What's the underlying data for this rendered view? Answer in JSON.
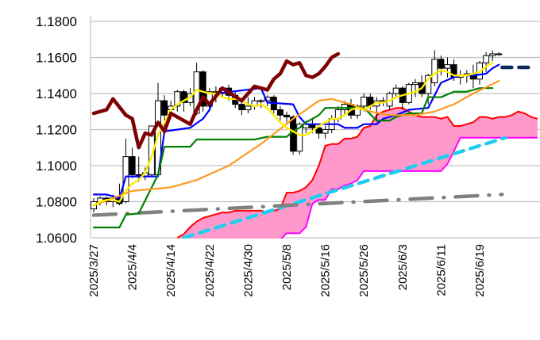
{
  "chart_data": {
    "type": "candlestick",
    "title": "",
    "xlabel": "",
    "ylabel": "",
    "ylim": [
      1.06,
      1.18
    ],
    "grid": true,
    "yticks": [
      "1.1800",
      "1.1600",
      "1.1400",
      "1.1200",
      "1.1000",
      "1.0800",
      "1.0600"
    ],
    "ytick_values": [
      1.18,
      1.16,
      1.14,
      1.12,
      1.1,
      1.08,
      1.06
    ],
    "xticks": [
      {
        "index": 0,
        "label": "2025/3/27"
      },
      {
        "index": 6,
        "label": "2025/4/4"
      },
      {
        "index": 12,
        "label": "2025/4/14"
      },
      {
        "index": 18,
        "label": "2025/4/22"
      },
      {
        "index": 24,
        "label": "2025/4/30"
      },
      {
        "index": 30,
        "label": "2025/5/8"
      },
      {
        "index": 36,
        "label": "2025/5/16"
      },
      {
        "index": 42,
        "label": "2025/5/26"
      },
      {
        "index": 48,
        "label": "2025/6/3"
      },
      {
        "index": 54,
        "label": "2025/6/11"
      },
      {
        "index": 60,
        "label": "2025/6/19"
      }
    ],
    "x_slots": 70,
    "candles_ohlc": [
      [
        1.076,
        1.082,
        1.074,
        1.08
      ],
      [
        1.08,
        1.083,
        1.078,
        1.082
      ],
      [
        1.082,
        1.083,
        1.078,
        1.08
      ],
      [
        1.08,
        1.084,
        1.077,
        1.082
      ],
      [
        1.082,
        1.09,
        1.078,
        1.079
      ],
      [
        1.08,
        1.115,
        1.079,
        1.105
      ],
      [
        1.105,
        1.11,
        1.093,
        1.095
      ],
      [
        1.095,
        1.105,
        1.091,
        1.094
      ],
      [
        1.094,
        1.099,
        1.092,
        1.096
      ],
      [
        1.095,
        1.122,
        1.094,
        1.122
      ],
      [
        1.095,
        1.146,
        1.094,
        1.136
      ],
      [
        1.136,
        1.139,
        1.121,
        1.128
      ],
      [
        1.131,
        1.136,
        1.126,
        1.133
      ],
      [
        1.133,
        1.142,
        1.13,
        1.141
      ],
      [
        1.141,
        1.142,
        1.13,
        1.135
      ],
      [
        1.135,
        1.143,
        1.133,
        1.14
      ],
      [
        1.129,
        1.157,
        1.128,
        1.152
      ],
      [
        1.152,
        1.153,
        1.13,
        1.133
      ],
      [
        1.133,
        1.143,
        1.13,
        1.141
      ],
      [
        1.141,
        1.144,
        1.135,
        1.14
      ],
      [
        1.14,
        1.144,
        1.138,
        1.143
      ],
      [
        1.143,
        1.145,
        1.136,
        1.139
      ],
      [
        1.139,
        1.141,
        1.132,
        1.134
      ],
      [
        1.134,
        1.137,
        1.128,
        1.131
      ],
      [
        1.131,
        1.138,
        1.129,
        1.133
      ],
      [
        1.133,
        1.138,
        1.131,
        1.136
      ],
      [
        1.136,
        1.137,
        1.132,
        1.136
      ],
      [
        1.136,
        1.139,
        1.133,
        1.138
      ],
      [
        1.138,
        1.139,
        1.129,
        1.131
      ],
      [
        1.131,
        1.133,
        1.125,
        1.128
      ],
      [
        1.128,
        1.13,
        1.124,
        1.127
      ],
      [
        1.127,
        1.128,
        1.106,
        1.108
      ],
      [
        1.108,
        1.124,
        1.106,
        1.123
      ],
      [
        1.121,
        1.125,
        1.118,
        1.123
      ],
      [
        1.123,
        1.126,
        1.118,
        1.121
      ],
      [
        1.121,
        1.123,
        1.115,
        1.118
      ],
      [
        1.118,
        1.122,
        1.115,
        1.12
      ],
      [
        1.12,
        1.128,
        1.118,
        1.126
      ],
      [
        1.126,
        1.133,
        1.124,
        1.131
      ],
      [
        1.131,
        1.136,
        1.128,
        1.134
      ],
      [
        1.134,
        1.137,
        1.126,
        1.128
      ],
      [
        1.128,
        1.134,
        1.126,
        1.133
      ],
      [
        1.133,
        1.14,
        1.13,
        1.138
      ],
      [
        1.138,
        1.14,
        1.131,
        1.133
      ],
      [
        1.133,
        1.138,
        1.124,
        1.136
      ],
      [
        1.136,
        1.138,
        1.133,
        1.135
      ],
      [
        1.133,
        1.141,
        1.131,
        1.14
      ],
      [
        1.14,
        1.145,
        1.138,
        1.143
      ],
      [
        1.143,
        1.144,
        1.131,
        1.135
      ],
      [
        1.135,
        1.146,
        1.134,
        1.145
      ],
      [
        1.145,
        1.148,
        1.138,
        1.146
      ],
      [
        1.146,
        1.15,
        1.138,
        1.14
      ],
      [
        1.14,
        1.151,
        1.134,
        1.15
      ],
      [
        1.146,
        1.164,
        1.144,
        1.159
      ],
      [
        1.159,
        1.161,
        1.15,
        1.154
      ],
      [
        1.154,
        1.16,
        1.149,
        1.156
      ],
      [
        1.156,
        1.159,
        1.147,
        1.149
      ],
      [
        1.149,
        1.153,
        1.145,
        1.15
      ],
      [
        1.15,
        1.153,
        1.146,
        1.151
      ],
      [
        1.151,
        1.156,
        1.143,
        1.148
      ],
      [
        1.148,
        1.158,
        1.145,
        1.157
      ],
      [
        1.157,
        1.163,
        1.152,
        1.161
      ],
      [
        1.161,
        1.164,
        1.158,
        1.162
      ],
      [
        1.162,
        1.163,
        1.161,
        1.162
      ]
    ],
    "series": [
      {
        "name": "tenkan",
        "color": "#0000ff",
        "points": [
          [
            0,
            1.084
          ],
          [
            2,
            1.084
          ],
          [
            4,
            1.082
          ],
          [
            5,
            1.094
          ],
          [
            10,
            1.094
          ],
          [
            11,
            1.119
          ],
          [
            15,
            1.121
          ],
          [
            17,
            1.126
          ],
          [
            18,
            1.131
          ],
          [
            19,
            1.14
          ],
          [
            26,
            1.143
          ],
          [
            27,
            1.135
          ],
          [
            31,
            1.134
          ],
          [
            32,
            1.127
          ],
          [
            33,
            1.123
          ],
          [
            38,
            1.123
          ],
          [
            39,
            1.121
          ],
          [
            41,
            1.121
          ],
          [
            42,
            1.123
          ],
          [
            44,
            1.123
          ],
          [
            45,
            1.126
          ],
          [
            47,
            1.128
          ],
          [
            49,
            1.131
          ],
          [
            52,
            1.132
          ],
          [
            53,
            1.139
          ],
          [
            54,
            1.146
          ],
          [
            56,
            1.149
          ],
          [
            57,
            1.15
          ],
          [
            59,
            1.15
          ],
          [
            61,
            1.151
          ],
          [
            62,
            1.154
          ],
          [
            63,
            1.156
          ]
        ]
      },
      {
        "name": "kijun",
        "color": "#008000",
        "points": [
          [
            0,
            1.0657
          ],
          [
            4,
            1.0657
          ],
          [
            5,
            1.0728
          ],
          [
            7,
            1.0735
          ],
          [
            10,
            1.095
          ],
          [
            11,
            1.1105
          ],
          [
            15,
            1.1105
          ],
          [
            16,
            1.1145
          ],
          [
            25,
            1.1145
          ],
          [
            27,
            1.116
          ],
          [
            30,
            1.116
          ],
          [
            31,
            1.119
          ],
          [
            32,
            1.121
          ],
          [
            33,
            1.124
          ],
          [
            35,
            1.128
          ],
          [
            36,
            1.132
          ],
          [
            42,
            1.132
          ],
          [
            44,
            1.125
          ],
          [
            46,
            1.125
          ],
          [
            47,
            1.127
          ],
          [
            49,
            1.129
          ],
          [
            51,
            1.129
          ],
          [
            52,
            1.138
          ],
          [
            54,
            1.138
          ],
          [
            56,
            1.141
          ],
          [
            58,
            1.141
          ],
          [
            60,
            1.143
          ],
          [
            62,
            1.143
          ]
        ]
      },
      {
        "name": "ma-long",
        "color": "#ff9a1f",
        "points": [
          [
            0,
            1.078
          ],
          [
            6,
            1.086
          ],
          [
            12,
            1.088
          ],
          [
            16,
            1.092
          ],
          [
            21,
            1.1
          ],
          [
            26,
            1.112
          ],
          [
            31,
            1.126
          ],
          [
            35,
            1.136
          ],
          [
            37,
            1.137
          ],
          [
            40,
            1.134
          ],
          [
            43,
            1.13
          ],
          [
            46,
            1.128
          ],
          [
            50,
            1.128
          ],
          [
            53,
            1.13
          ],
          [
            56,
            1.134
          ],
          [
            59,
            1.14
          ],
          [
            63,
            1.147
          ]
        ]
      },
      {
        "name": "ma-short",
        "color": "#ffee00",
        "points": [
          [
            0,
            1.078
          ],
          [
            1,
            1.08
          ],
          [
            2,
            1.081
          ],
          [
            3,
            1.081
          ],
          [
            4,
            1.08
          ],
          [
            5,
            1.086
          ],
          [
            6,
            1.09
          ],
          [
            7,
            1.092
          ],
          [
            8,
            1.096
          ],
          [
            9,
            1.105
          ],
          [
            10,
            1.117
          ],
          [
            11,
            1.124
          ],
          [
            12,
            1.131
          ],
          [
            13,
            1.134
          ],
          [
            14,
            1.136
          ],
          [
            15,
            1.138
          ],
          [
            16,
            1.142
          ],
          [
            17,
            1.141
          ],
          [
            18,
            1.14
          ],
          [
            19,
            1.14
          ],
          [
            20,
            1.138
          ],
          [
            21,
            1.137
          ],
          [
            22,
            1.137
          ],
          [
            23,
            1.136
          ],
          [
            24,
            1.134
          ],
          [
            25,
            1.133
          ],
          [
            26,
            1.134
          ],
          [
            27,
            1.132
          ],
          [
            28,
            1.128
          ],
          [
            29,
            1.124
          ],
          [
            30,
            1.121
          ],
          [
            31,
            1.119
          ],
          [
            32,
            1.117
          ],
          [
            33,
            1.117
          ],
          [
            34,
            1.119
          ],
          [
            35,
            1.122
          ],
          [
            36,
            1.124
          ],
          [
            37,
            1.126
          ],
          [
            38,
            1.126
          ],
          [
            39,
            1.128
          ],
          [
            40,
            1.131
          ],
          [
            41,
            1.132
          ],
          [
            42,
            1.131
          ],
          [
            43,
            1.133
          ],
          [
            44,
            1.135
          ],
          [
            45,
            1.135
          ],
          [
            46,
            1.136
          ],
          [
            47,
            1.138
          ],
          [
            48,
            1.139
          ],
          [
            49,
            1.14
          ],
          [
            50,
            1.141
          ],
          [
            51,
            1.143
          ],
          [
            52,
            1.148
          ],
          [
            53,
            1.151
          ],
          [
            54,
            1.153
          ],
          [
            55,
            1.152
          ],
          [
            56,
            1.15
          ],
          [
            57,
            1.15
          ],
          [
            58,
            1.15
          ],
          [
            59,
            1.151
          ],
          [
            60,
            1.152
          ],
          [
            61,
            1.155
          ],
          [
            62,
            1.157
          ]
        ]
      },
      {
        "name": "chikou",
        "color": "#7f0000",
        "points": [
          [
            0,
            1.129
          ],
          [
            2,
            1.131
          ],
          [
            3,
            1.137
          ],
          [
            5,
            1.128
          ],
          [
            6,
            1.126
          ],
          [
            7,
            1.11
          ],
          [
            8,
            1.118
          ],
          [
            9,
            1.117
          ],
          [
            10,
            1.124
          ],
          [
            11,
            1.119
          ],
          [
            12,
            1.129
          ],
          [
            15,
            1.123
          ],
          [
            16,
            1.131
          ],
          [
            17,
            1.138
          ],
          [
            18,
            1.134
          ],
          [
            20,
            1.143
          ],
          [
            23,
            1.136
          ],
          [
            25,
            1.144
          ],
          [
            27,
            1.142
          ],
          [
            28,
            1.148
          ],
          [
            29,
            1.151
          ],
          [
            30,
            1.158
          ],
          [
            31,
            1.156
          ],
          [
            32,
            1.157
          ],
          [
            33,
            1.15
          ],
          [
            34,
            1.149
          ],
          [
            35,
            1.151
          ],
          [
            36,
            1.155
          ],
          [
            37,
            1.16
          ],
          [
            38,
            1.162
          ]
        ]
      }
    ],
    "cloud": {
      "start_index": 13,
      "fill_color": "#ff99cc",
      "senkou_a_color": "#ff0000",
      "senkou_b_color": "#ff00ff",
      "senkou_a": [
        1.06,
        1.062,
        1.066,
        1.069,
        1.071,
        1.072,
        1.073,
        1.074,
        1.074,
        1.075,
        1.075,
        1.075,
        1.075,
        1.075,
        1.074,
        1.075,
        1.076,
        1.085,
        1.085,
        1.086,
        1.088,
        1.092,
        1.1,
        1.111,
        1.112,
        1.112,
        1.115,
        1.115,
        1.116,
        1.121,
        1.122,
        1.128,
        1.13,
        1.131,
        1.132,
        1.132,
        1.13,
        1.128,
        1.127,
        1.127,
        1.127,
        1.126,
        1.127,
        1.122,
        1.122,
        1.123,
        1.124,
        1.127,
        1.127,
        1.126,
        1.127,
        1.127,
        1.128,
        1.13,
        1.129,
        1.127,
        1.126
      ],
      "senkou_b": [
        1.05,
        1.05,
        1.05,
        1.052,
        1.052,
        1.052,
        1.054,
        1.054,
        1.055,
        1.055,
        1.056,
        1.056,
        1.057,
        1.058,
        1.058,
        1.059,
        1.059,
        1.0625,
        1.0625,
        1.0625,
        1.066,
        1.079,
        1.081,
        1.081,
        1.087,
        1.087,
        1.089,
        1.09,
        1.092,
        1.097,
        1.097,
        1.097,
        1.097,
        1.097,
        1.097,
        1.097,
        1.097,
        1.097,
        1.097,
        1.097,
        1.097,
        1.097,
        1.101,
        1.108,
        1.1155,
        1.1155,
        1.1155,
        1.1155,
        1.1155,
        1.1155,
        1.1155,
        1.1155,
        1.1155,
        1.1155,
        1.1155,
        1.1155,
        1.1155
      ]
    },
    "trendlines": [
      {
        "name": "uptrend-support",
        "color": "#22ccf0",
        "style": "dashed",
        "from": [
          14,
          1.06
        ],
        "to": [
          64,
          1.1155
        ]
      },
      {
        "name": "long-support",
        "color": "#808080",
        "style": "dash-dot",
        "from": [
          0,
          1.0725
        ],
        "to": [
          63.5,
          1.084
        ]
      },
      {
        "name": "resistance-level",
        "color": "#0d2a5e",
        "style": "dashed",
        "from": [
          63.5,
          1.1545
        ],
        "to": [
          68.5,
          1.1545
        ]
      }
    ]
  }
}
